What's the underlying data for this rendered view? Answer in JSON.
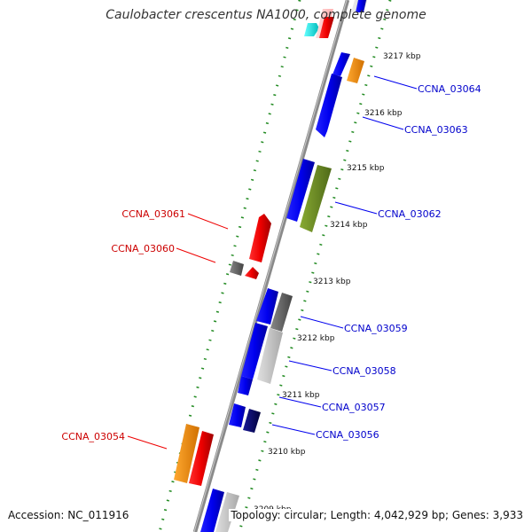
{
  "title": "Caulobacter crescentus NA1000, complete genome",
  "footer": {
    "accession": "Accession: NC_011916",
    "topology": "Topology: circular; Length: 4,042,929 bp; Genes: 3,933"
  },
  "colors": {
    "backbone": "#8c8c8c",
    "forward_gene": "#0000ee",
    "reverse_gene": "#ee0000",
    "orange_gene": "#ff8c00",
    "green_gene": "#6b8e23",
    "gray_gene": "#666666",
    "light_gray_gene": "#c8c8c8",
    "navy_gene": "#00006b",
    "cyan_gene": "#00ffff",
    "tick_dots": "#228b22",
    "forward_label": "#0000cc",
    "reverse_label": "#cc0000"
  },
  "kbp_labels": [
    "3217 kbp",
    "3216 kbp",
    "3215 kbp",
    "3214 kbp",
    "3213 kbp",
    "3212 kbp",
    "3211 kbp",
    "3210 kbp",
    "3209 kbp"
  ],
  "gene_labels": {
    "forward": [
      "CCNA_03064",
      "CCNA_03063",
      "CCNA_03062",
      "CCNA_03059",
      "CCNA_03058",
      "CCNA_03057",
      "CCNA_03056"
    ],
    "reverse": [
      "CCNA_03061",
      "CCNA_03060",
      "CCNA_03054"
    ]
  }
}
